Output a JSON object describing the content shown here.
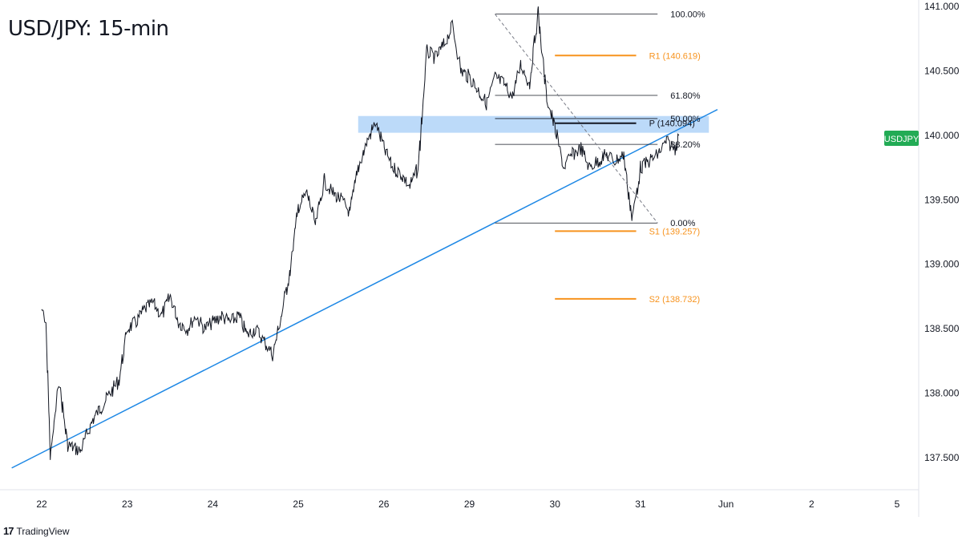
{
  "chart_data": {
    "type": "line",
    "title": "USD/JPY: 15-min",
    "symbol": "USDJPY",
    "x_ticks": [
      "22",
      "23",
      "24",
      "25",
      "26",
      "29",
      "30",
      "31",
      "Jun",
      "2",
      "5"
    ],
    "y_ticks": [
      "141.000",
      "140.500",
      "140.000",
      "139.500",
      "139.000",
      "138.500",
      "138.000",
      "137.500"
    ],
    "ylim": [
      137.25,
      141.1
    ],
    "last_price_label": "USDJPY",
    "series": [
      {
        "x": [
          0,
          0.05,
          0.1,
          0.2,
          0.3,
          0.45,
          0.6,
          0.75,
          0.9,
          1.0,
          1.1,
          1.2,
          1.3,
          1.4,
          1.5,
          1.6,
          1.7,
          1.8,
          1.9,
          2.0,
          2.1,
          2.2,
          2.3,
          2.4,
          2.5,
          2.6,
          2.7,
          2.8,
          2.9,
          3.0,
          3.1,
          3.2,
          3.3,
          3.4,
          3.5,
          3.6,
          3.7,
          3.8,
          3.9,
          4.0,
          4.1,
          4.2,
          4.3,
          4.4,
          4.5,
          4.6,
          4.7,
          4.8,
          4.9,
          5.0,
          5.1,
          5.2,
          5.3,
          5.4,
          5.5,
          5.6,
          5.7,
          5.8,
          5.9,
          6.0,
          6.1,
          6.2,
          6.3,
          6.4,
          6.5,
          6.6,
          6.7,
          6.8,
          6.9,
          7.0,
          7.1,
          7.2,
          7.3,
          7.4,
          7.45
        ],
        "values": [
          138.65,
          138.5,
          137.5,
          138.1,
          137.6,
          137.55,
          137.8,
          137.95,
          138.1,
          138.5,
          138.55,
          138.65,
          138.7,
          138.6,
          138.75,
          138.55,
          138.5,
          138.6,
          138.5,
          138.55,
          138.6,
          138.55,
          138.6,
          138.45,
          138.5,
          138.4,
          138.3,
          138.6,
          138.95,
          139.45,
          139.55,
          139.3,
          139.65,
          139.55,
          139.5,
          139.4,
          139.75,
          139.95,
          140.1,
          139.9,
          139.75,
          139.7,
          139.6,
          139.75,
          140.65,
          140.6,
          140.7,
          140.85,
          140.5,
          140.45,
          140.35,
          140.25,
          140.45,
          140.4,
          140.3,
          140.55,
          140.4,
          140.95,
          140.3,
          140.05,
          139.75,
          139.85,
          139.9,
          139.75,
          139.8,
          139.85,
          139.8,
          139.85,
          139.35,
          139.75,
          139.8,
          139.85,
          139.95,
          139.9,
          140.0
        ]
      }
    ],
    "trendline": {
      "from": [
        -0.35,
        137.42
      ],
      "to": [
        7.9,
        140.2
      ],
      "color": "#1e88e5"
    },
    "zone": {
      "x_from": 3.7,
      "x_to": 7.8,
      "y_from": 140.02,
      "y_to": 140.15,
      "color": "#90c1f5"
    },
    "fib": {
      "x_from": 5.3,
      "x_to": 7.2,
      "label_x": 7.35,
      "levels": [
        {
          "label": "100.00%",
          "value": 140.94
        },
        {
          "label": "61.80%",
          "value": 140.31
        },
        {
          "label": "50.00%",
          "value": 140.13
        },
        {
          "label": "38.20%",
          "value": 139.93
        },
        {
          "label": "0.00%",
          "value": 139.32
        }
      ],
      "diagonal": {
        "from": [
          5.3,
          140.94
        ],
        "to": [
          7.2,
          139.32
        ]
      }
    },
    "pivots": [
      {
        "label": "R1 (140.619)",
        "value": 140.619,
        "color": "#f7931e"
      },
      {
        "label": "P (140.094)",
        "value": 140.094,
        "color": "#131722"
      },
      {
        "label": "S1 (139.257)",
        "value": 139.257,
        "color": "#f7931e"
      },
      {
        "label": "S2 (138.732)",
        "value": 138.732,
        "color": "#f7931e"
      }
    ],
    "pivot_x": [
      6.0,
      6.95
    ],
    "pivot_label_x": 7.1
  },
  "branding": {
    "logo": "17",
    "name": "TradingView"
  },
  "colors": {
    "candles": "#131722",
    "axis": "#b2b5be",
    "pivot": "#f7931e",
    "badge": "#22ab55"
  }
}
